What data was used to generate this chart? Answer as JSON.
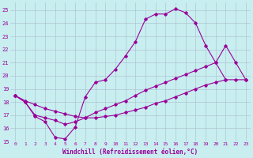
{
  "background_color": "#c8eef0",
  "grid_color": "#aabbcc",
  "line_color": "#990099",
  "xlabel": "Windchill (Refroidissement éolien,°C)",
  "xlim": [
    -0.5,
    23.5
  ],
  "ylim": [
    15,
    25.6
  ],
  "yticks": [
    15,
    16,
    17,
    18,
    19,
    20,
    21,
    22,
    23,
    24,
    25
  ],
  "xticks": [
    0,
    1,
    2,
    3,
    4,
    5,
    6,
    7,
    8,
    9,
    10,
    11,
    12,
    13,
    14,
    15,
    16,
    17,
    18,
    19,
    20,
    21,
    22,
    23
  ],
  "curve1_x": [
    0,
    1,
    2,
    3,
    4,
    5,
    6,
    7,
    8,
    9,
    10,
    11,
    12,
    13,
    14,
    15,
    16,
    17,
    18,
    19,
    20,
    21
  ],
  "curve1_y": [
    18.5,
    18.0,
    16.9,
    16.5,
    15.3,
    15.2,
    16.1,
    18.4,
    19.5,
    19.7,
    20.5,
    21.5,
    22.6,
    24.3,
    24.7,
    24.7,
    25.1,
    24.8,
    24.0,
    22.3,
    21.0,
    19.7
  ],
  "curve2_x": [
    0,
    1,
    2,
    3,
    4,
    5,
    6,
    7,
    8,
    9,
    10,
    11,
    12,
    13,
    14,
    15,
    16,
    17,
    18,
    19,
    20,
    21,
    22,
    23
  ],
  "curve2_y": [
    18.5,
    18.0,
    17.0,
    16.8,
    16.6,
    16.3,
    16.5,
    16.8,
    17.2,
    17.5,
    17.8,
    18.1,
    18.5,
    18.9,
    19.2,
    19.5,
    19.8,
    20.1,
    20.4,
    20.7,
    21.0,
    22.3,
    21.0,
    19.7
  ],
  "curve3_x": [
    0,
    1,
    2,
    3,
    4,
    5,
    6,
    7,
    8,
    9,
    10,
    11,
    12,
    13,
    14,
    15,
    16,
    17,
    18,
    19,
    20,
    21,
    22,
    23
  ],
  "curve3_y": [
    18.5,
    18.1,
    17.8,
    17.5,
    17.3,
    17.1,
    16.9,
    16.8,
    16.8,
    16.9,
    17.0,
    17.2,
    17.4,
    17.6,
    17.9,
    18.1,
    18.4,
    18.7,
    19.0,
    19.3,
    19.5,
    19.7,
    19.7,
    19.7
  ]
}
